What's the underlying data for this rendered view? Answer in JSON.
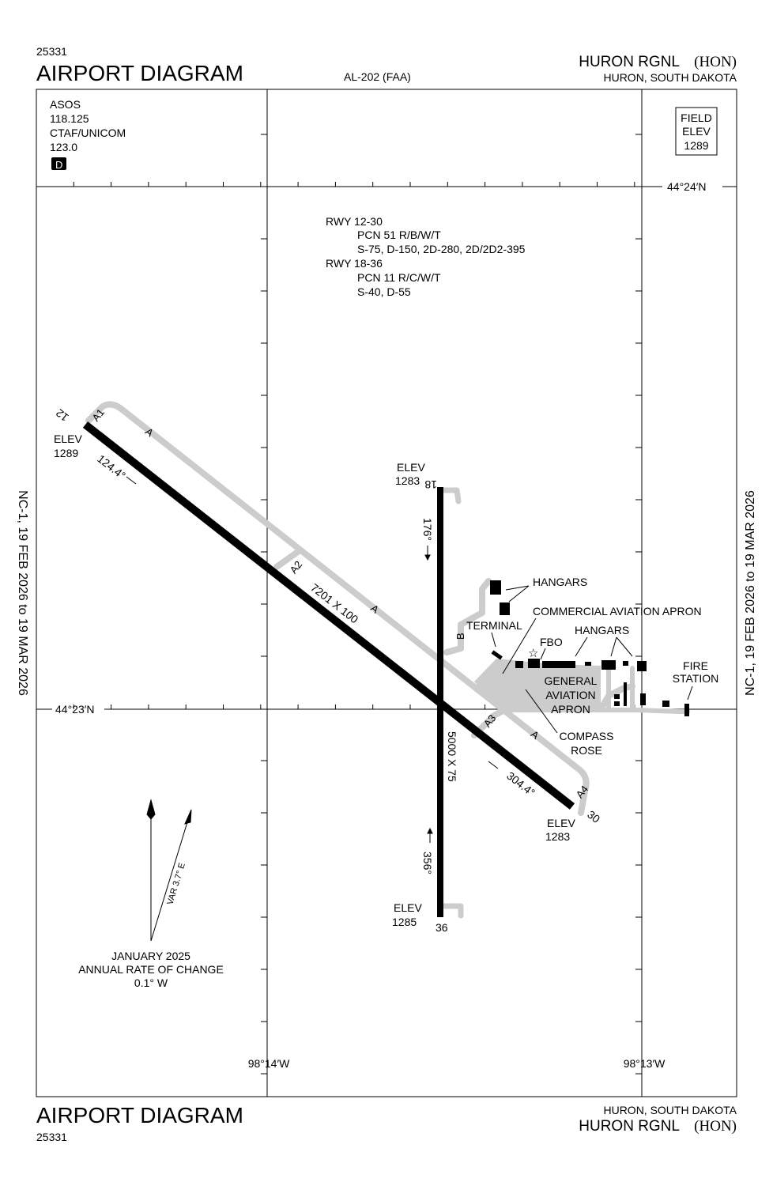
{
  "header": {
    "chart_number": "25331",
    "title": "AIRPORT DIAGRAM",
    "chart_id": "AL-202 (FAA)",
    "airport_name": "HURON RGNL",
    "airport_id": "(HON)",
    "location": "HURON, SOUTH DAKOTA"
  },
  "comms": {
    "asos_label": "ASOS",
    "asos_freq": "118.125",
    "ctaf_label": "CTAF/UNICOM",
    "ctaf_freq": "123.0",
    "d_symbol": "D"
  },
  "field_elev": {
    "line1": "FIELD",
    "line2": "ELEV",
    "value": "1289"
  },
  "coordinates": {
    "lat_north": "44°24′N",
    "lat_south": "44°23′N",
    "lon_west": "98°14′W",
    "lon_east": "98°13′W"
  },
  "runway_data": {
    "rwy1": "RWY 12-30",
    "rwy1_pcn": "PCN 51 R/B/W/T",
    "rwy1_wt": "S-75, D-150, 2D-280, 2D/2D2-395",
    "rwy2": "RWY 18-36",
    "rwy2_pcn": "PCN 11 R/C/W/T",
    "rwy2_wt": "S-40, D-55"
  },
  "runways": {
    "r12": {
      "label": "12",
      "elev_label": "ELEV",
      "elev": "1289",
      "heading": "124.4°"
    },
    "r30": {
      "label": "30",
      "elev_label": "ELEV",
      "elev": "1283",
      "heading": "304.4°"
    },
    "r12_30_dims": "7201 X 100",
    "r18": {
      "label": "18",
      "elev_label": "ELEV",
      "elev": "1283",
      "heading": "176°"
    },
    "r36": {
      "label": "36",
      "elev_label": "ELEV",
      "elev": "1285",
      "heading": "356°"
    },
    "r18_36_dims": "5000 X 75"
  },
  "taxiways": {
    "a": "A",
    "a1": "A1",
    "a2": "A2",
    "a3": "A3",
    "a4": "A4",
    "b": "B"
  },
  "facilities": {
    "hangars_north": "HANGARS",
    "commercial_apron": "COMMERCIAL AVIATION APRON",
    "terminal": "TERMINAL",
    "fbo": "FBO",
    "hangars_east": "HANGARS",
    "ga_apron_1": "GENERAL",
    "ga_apron_2": "AVIATION",
    "ga_apron_3": "APRON",
    "compass_rose_1": "COMPASS",
    "compass_rose_2": "ROSE",
    "fire_station_1": "FIRE",
    "fire_station_2": "STATION"
  },
  "magvar": {
    "var": "VAR 3.7° E",
    "date": "JANUARY 2025",
    "rate_label": "ANNUAL RATE OF CHANGE",
    "rate": "0.1° W"
  },
  "effective": "NC-1,  19 FEB 2026  to  19 MAR 2026",
  "footer": {
    "title": "AIRPORT DIAGRAM",
    "chart_number": "25331",
    "location": "HURON, SOUTH DAKOTA",
    "airport_name": "HURON RGNL",
    "airport_id": "(HON)"
  },
  "colors": {
    "runway": "#000000",
    "taxiway": "#cccccc",
    "building": "#000000"
  }
}
